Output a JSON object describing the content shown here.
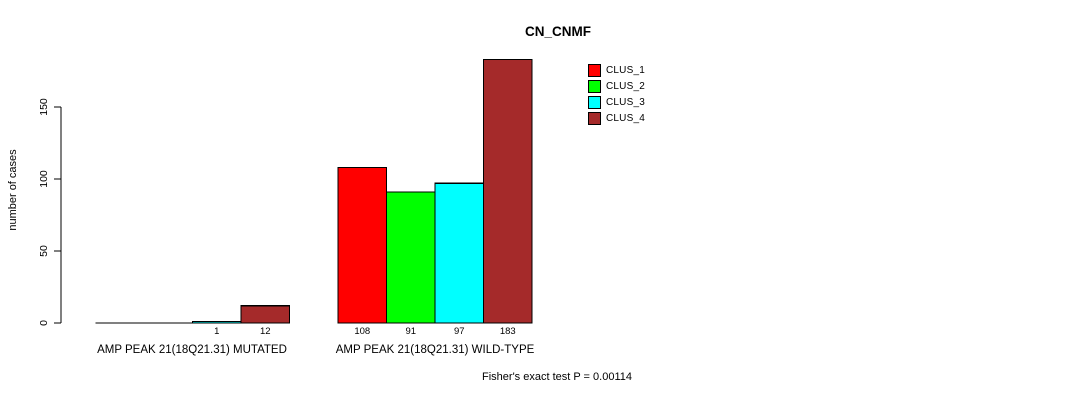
{
  "chart_data": {
    "type": "bar",
    "title": "CN_CNMF",
    "ylabel": "number of cases",
    "xlabel": "",
    "ylim": [
      0,
      183
    ],
    "yticks": [
      "0",
      "50",
      "100",
      "150"
    ],
    "ytick_values": [
      0,
      50,
      100,
      150
    ],
    "grid": "off",
    "legend_position": "top-right",
    "series": [
      {
        "name": "CLUS_1",
        "color": "#FF0000"
      },
      {
        "name": "CLUS_2",
        "color": "#00FF00"
      },
      {
        "name": "CLUS_3",
        "color": "#00FFFF"
      },
      {
        "name": "CLUS_4",
        "color": "#A52A2A"
      }
    ],
    "groups": [
      {
        "label": "AMP PEAK 21(18Q21.31) MUTATED",
        "values": [
          0,
          0,
          1,
          12
        ],
        "value_labels": [
          "",
          "",
          "1",
          "12"
        ]
      },
      {
        "label": "AMP PEAK 21(18Q21.31) WILD-TYPE",
        "values": [
          108,
          91,
          97,
          183
        ],
        "value_labels": [
          "108",
          "91",
          "97",
          "183"
        ]
      }
    ],
    "annotation": "Fisher's exact test P = 0.00114",
    "bar_border_color": "#000000",
    "axis_color": "#000000"
  }
}
